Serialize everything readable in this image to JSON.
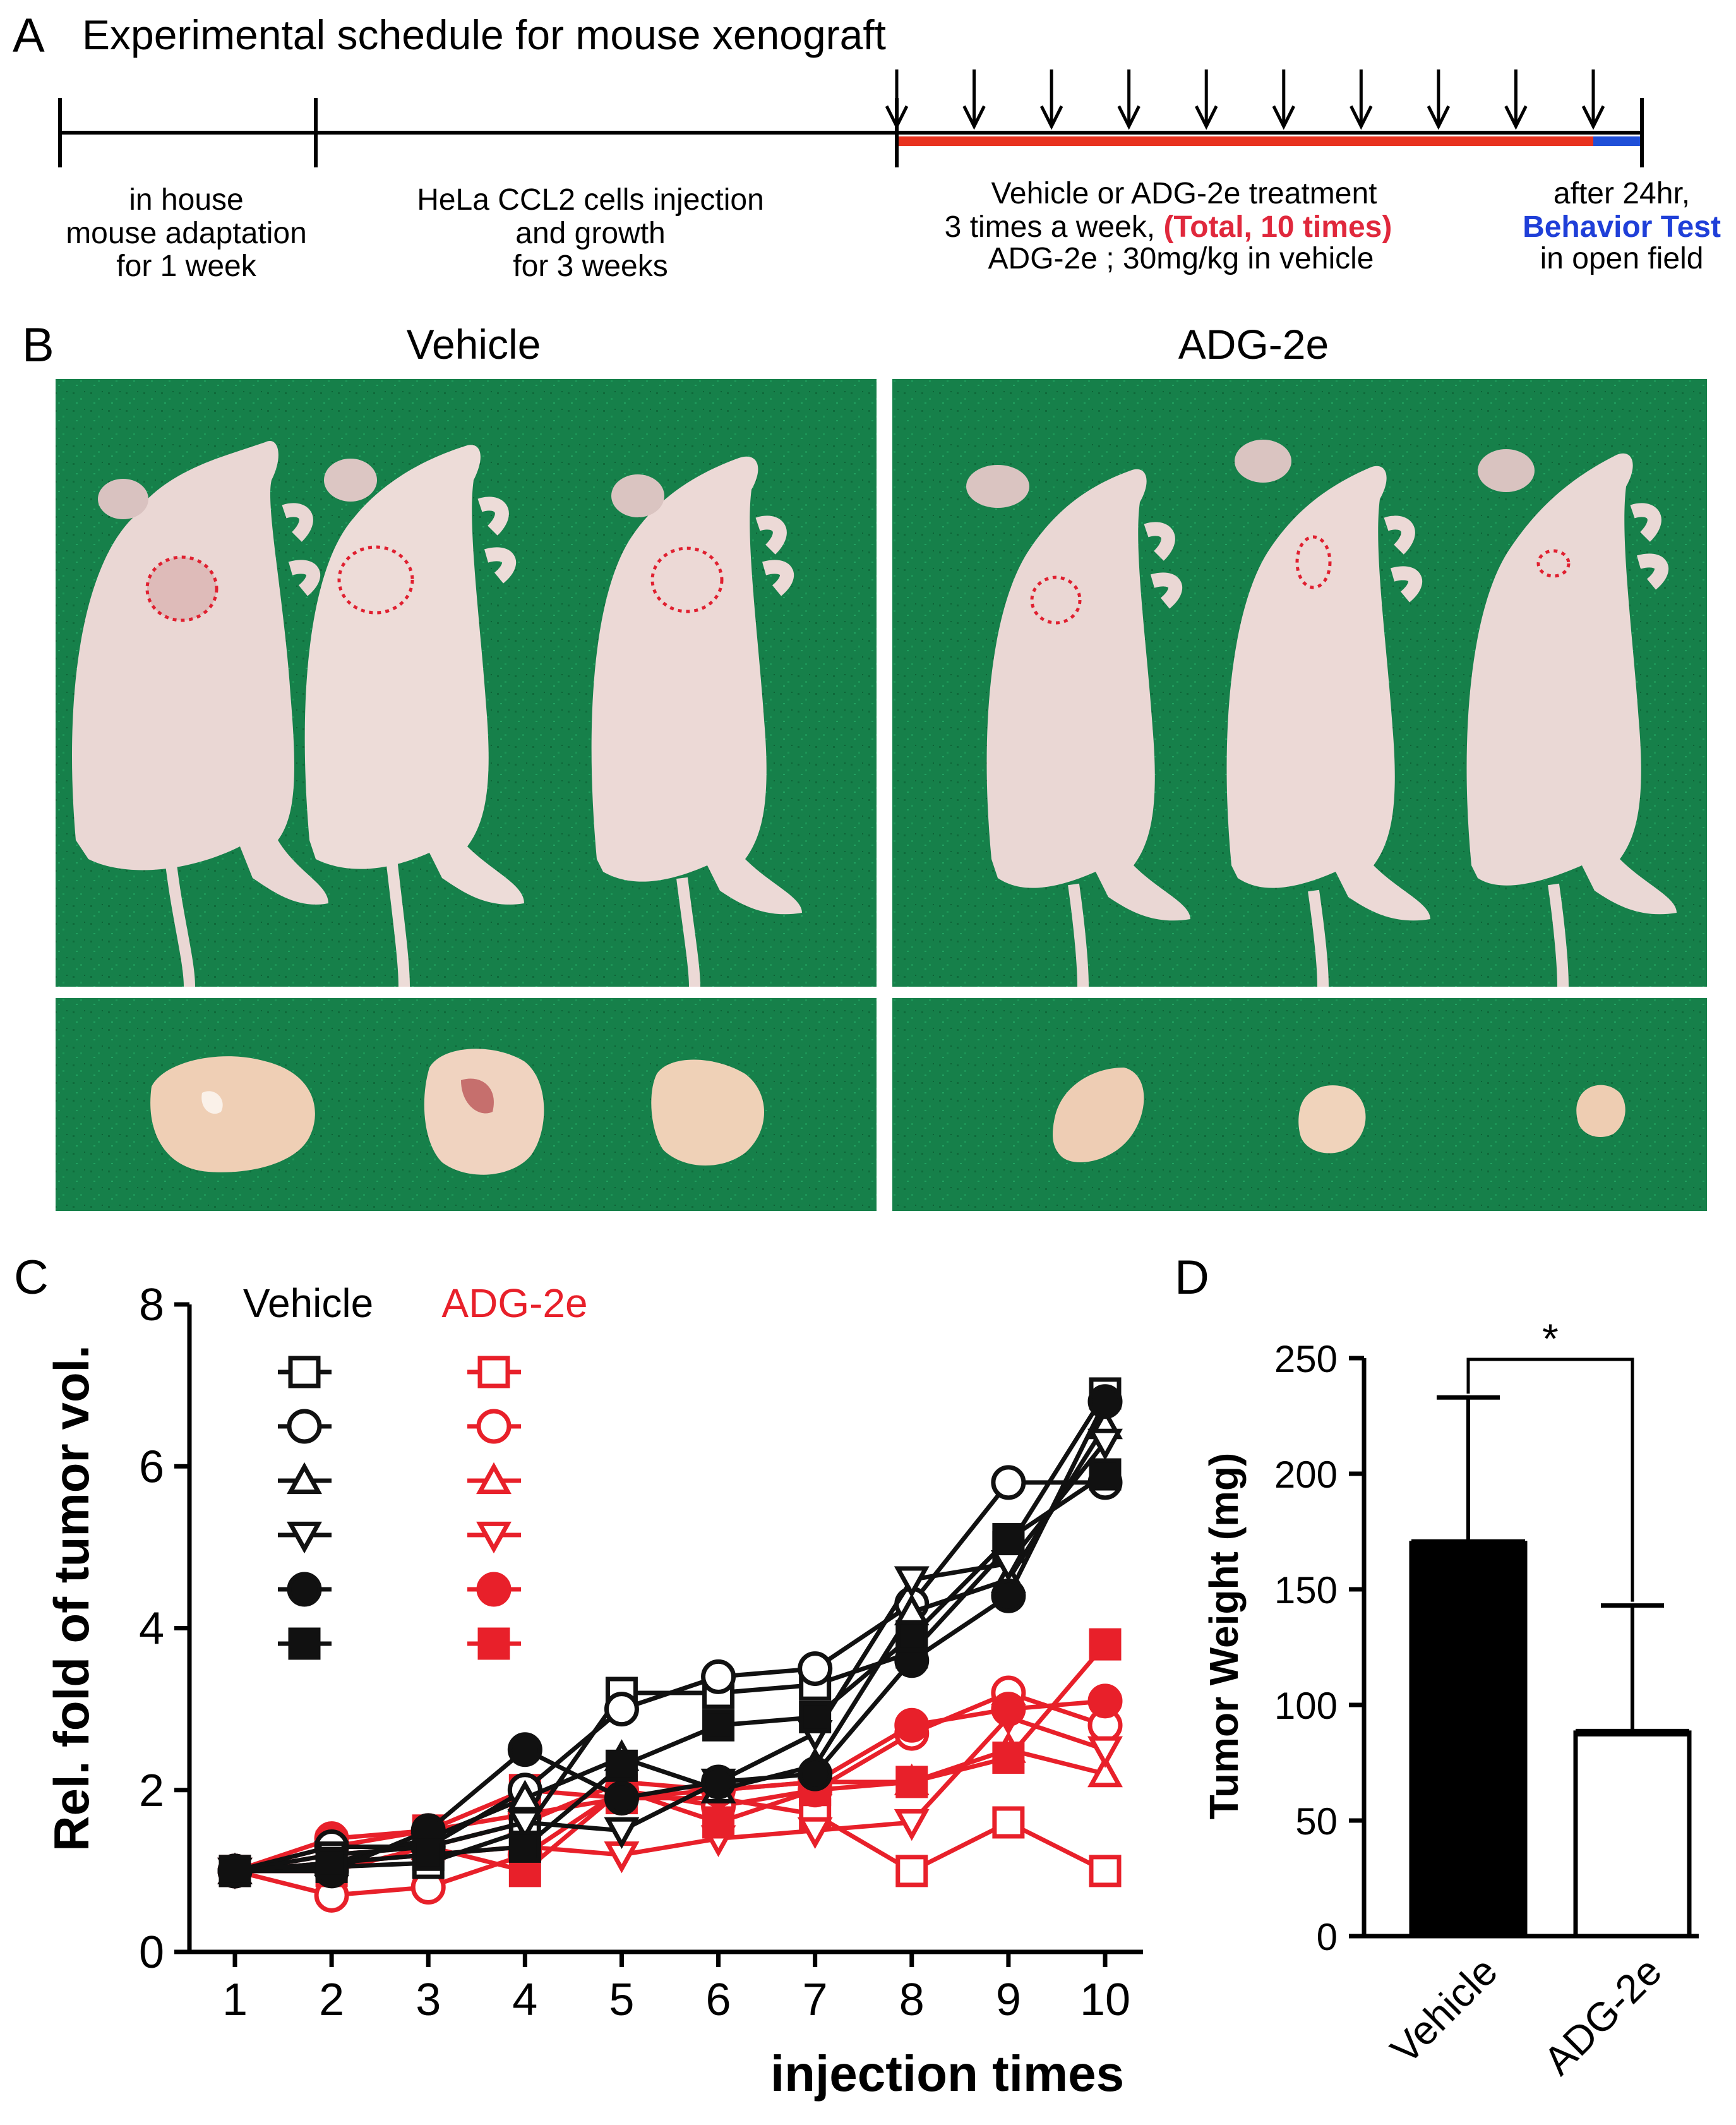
{
  "panelA": {
    "letter": "A",
    "title": "Experimental schedule for mouse xenograft",
    "adaptation": [
      "in house",
      "mouse adaptation",
      "for 1 week"
    ],
    "injection": [
      "HeLa CCL2 cells injection",
      "and growth",
      "for 3 weeks"
    ],
    "treatment_line1": "Vehicle or ADG-2e treatment",
    "treatment_line2_prefix": "3 times a week, ",
    "treatment_line2_highlight": "(Total, 10 times)",
    "treatment_line3": "ADG-2e ; 30mg/kg in vehicle",
    "after_line1": "after 24hr,",
    "after_line2": "Behavior Test",
    "after_line3": "in open field",
    "arrow_count": 10,
    "colors": {
      "treatment_bar": "#e8321e",
      "behavior_bar": "#1f4fd8",
      "highlight_red": "#e0283c",
      "highlight_blue": "#1f3fd8"
    }
  },
  "panelB": {
    "letter": "B",
    "vehicle_label": "Vehicle",
    "adg_label": "ADG-2e",
    "colors": {
      "background": "#16804a",
      "mouse": "#ead7d4",
      "tumor": "#efcfb5",
      "circle": "#e02030"
    }
  },
  "panelC": {
    "letter": "C"
  },
  "panelD": {
    "letter": "D"
  },
  "chart_data": [
    {
      "type": "line",
      "panel": "C",
      "title": "",
      "xlabel": "injection times",
      "ylabel": "Rel. fold of tumor vol.",
      "xlim": [
        1,
        10
      ],
      "ylim": [
        0,
        8
      ],
      "xticks": [
        1,
        2,
        3,
        4,
        5,
        6,
        7,
        8,
        9,
        10
      ],
      "yticks": [
        0,
        2,
        4,
        6,
        8
      ],
      "x": [
        1,
        2,
        3,
        4,
        5,
        6,
        7,
        8,
        9,
        10
      ],
      "legend_headers": {
        "vehicle": "Vehicle",
        "adg": "ADG-2e"
      },
      "vehicle_color": "#111111",
      "adg_color": "#e8202a",
      "series": [
        {
          "name": "Vehicle-1",
          "group": "vehicle",
          "marker": "square-open",
          "values": [
            1.0,
            1.05,
            1.1,
            1.5,
            3.2,
            3.2,
            3.3,
            3.7,
            5.0,
            6.9
          ]
        },
        {
          "name": "Vehicle-2",
          "group": "vehicle",
          "marker": "circle-open",
          "values": [
            1.0,
            1.3,
            1.3,
            2.0,
            3.0,
            3.4,
            3.5,
            4.3,
            5.8,
            5.8
          ]
        },
        {
          "name": "Vehicle-3",
          "group": "vehicle",
          "marker": "triangle-open",
          "values": [
            1.0,
            1.1,
            1.4,
            1.9,
            2.4,
            2.0,
            2.3,
            4.2,
            4.6,
            6.5
          ]
        },
        {
          "name": "Vehicle-4",
          "group": "vehicle",
          "marker": "tri-down-open",
          "values": [
            1.0,
            1.2,
            1.3,
            1.6,
            1.5,
            2.1,
            2.7,
            4.6,
            4.8,
            6.3
          ]
        },
        {
          "name": "Vehicle-5",
          "group": "vehicle",
          "marker": "circle-filled",
          "values": [
            1.0,
            1.0,
            1.5,
            2.5,
            1.9,
            2.1,
            2.2,
            3.6,
            4.4,
            6.8
          ]
        },
        {
          "name": "Vehicle-6",
          "group": "vehicle",
          "marker": "square-filled",
          "values": [
            1.0,
            1.1,
            1.2,
            1.3,
            2.3,
            2.8,
            2.9,
            3.9,
            5.1,
            5.9
          ]
        },
        {
          "name": "ADG-2e-1",
          "group": "adg",
          "marker": "square-open",
          "values": [
            1.0,
            1.3,
            1.5,
            2.0,
            1.9,
            1.9,
            1.7,
            1.0,
            1.6,
            1.0
          ]
        },
        {
          "name": "ADG-2e-2",
          "group": "adg",
          "marker": "circle-open",
          "values": [
            1.0,
            0.7,
            0.8,
            1.2,
            2.0,
            1.8,
            2.0,
            2.7,
            3.2,
            2.8
          ]
        },
        {
          "name": "ADG-2e-3",
          "group": "adg",
          "marker": "triangle-open",
          "values": [
            1.0,
            1.2,
            1.3,
            1.6,
            2.1,
            2.0,
            2.1,
            2.1,
            2.5,
            2.2
          ]
        },
        {
          "name": "ADG-2e-4",
          "group": "adg",
          "marker": "tri-down-open",
          "values": [
            1.0,
            1.1,
            1.2,
            1.3,
            1.2,
            1.4,
            1.5,
            1.6,
            2.9,
            2.5
          ]
        },
        {
          "name": "ADG-2e-5",
          "group": "adg",
          "marker": "circle-filled",
          "values": [
            1.0,
            1.4,
            1.5,
            1.7,
            1.9,
            2.0,
            2.1,
            2.8,
            3.0,
            3.1
          ]
        },
        {
          "name": "ADG-2e-6",
          "group": "adg",
          "marker": "square-filled",
          "values": [
            1.0,
            1.0,
            1.3,
            1.0,
            2.0,
            1.6,
            2.0,
            2.1,
            2.4,
            3.8
          ]
        }
      ]
    },
    {
      "type": "bar",
      "panel": "D",
      "title": "",
      "xlabel": "",
      "ylabel": "Tumor Weight (mg)",
      "ylim": [
        0,
        250
      ],
      "yticks": [
        0,
        50,
        100,
        150,
        200,
        250
      ],
      "categories": [
        "Vehicle",
        "ADG-2e"
      ],
      "values": [
        170,
        88
      ],
      "error_upper": [
        233,
        143
      ],
      "fills": [
        "#000000",
        "#ffffff"
      ],
      "significance": "*"
    }
  ]
}
